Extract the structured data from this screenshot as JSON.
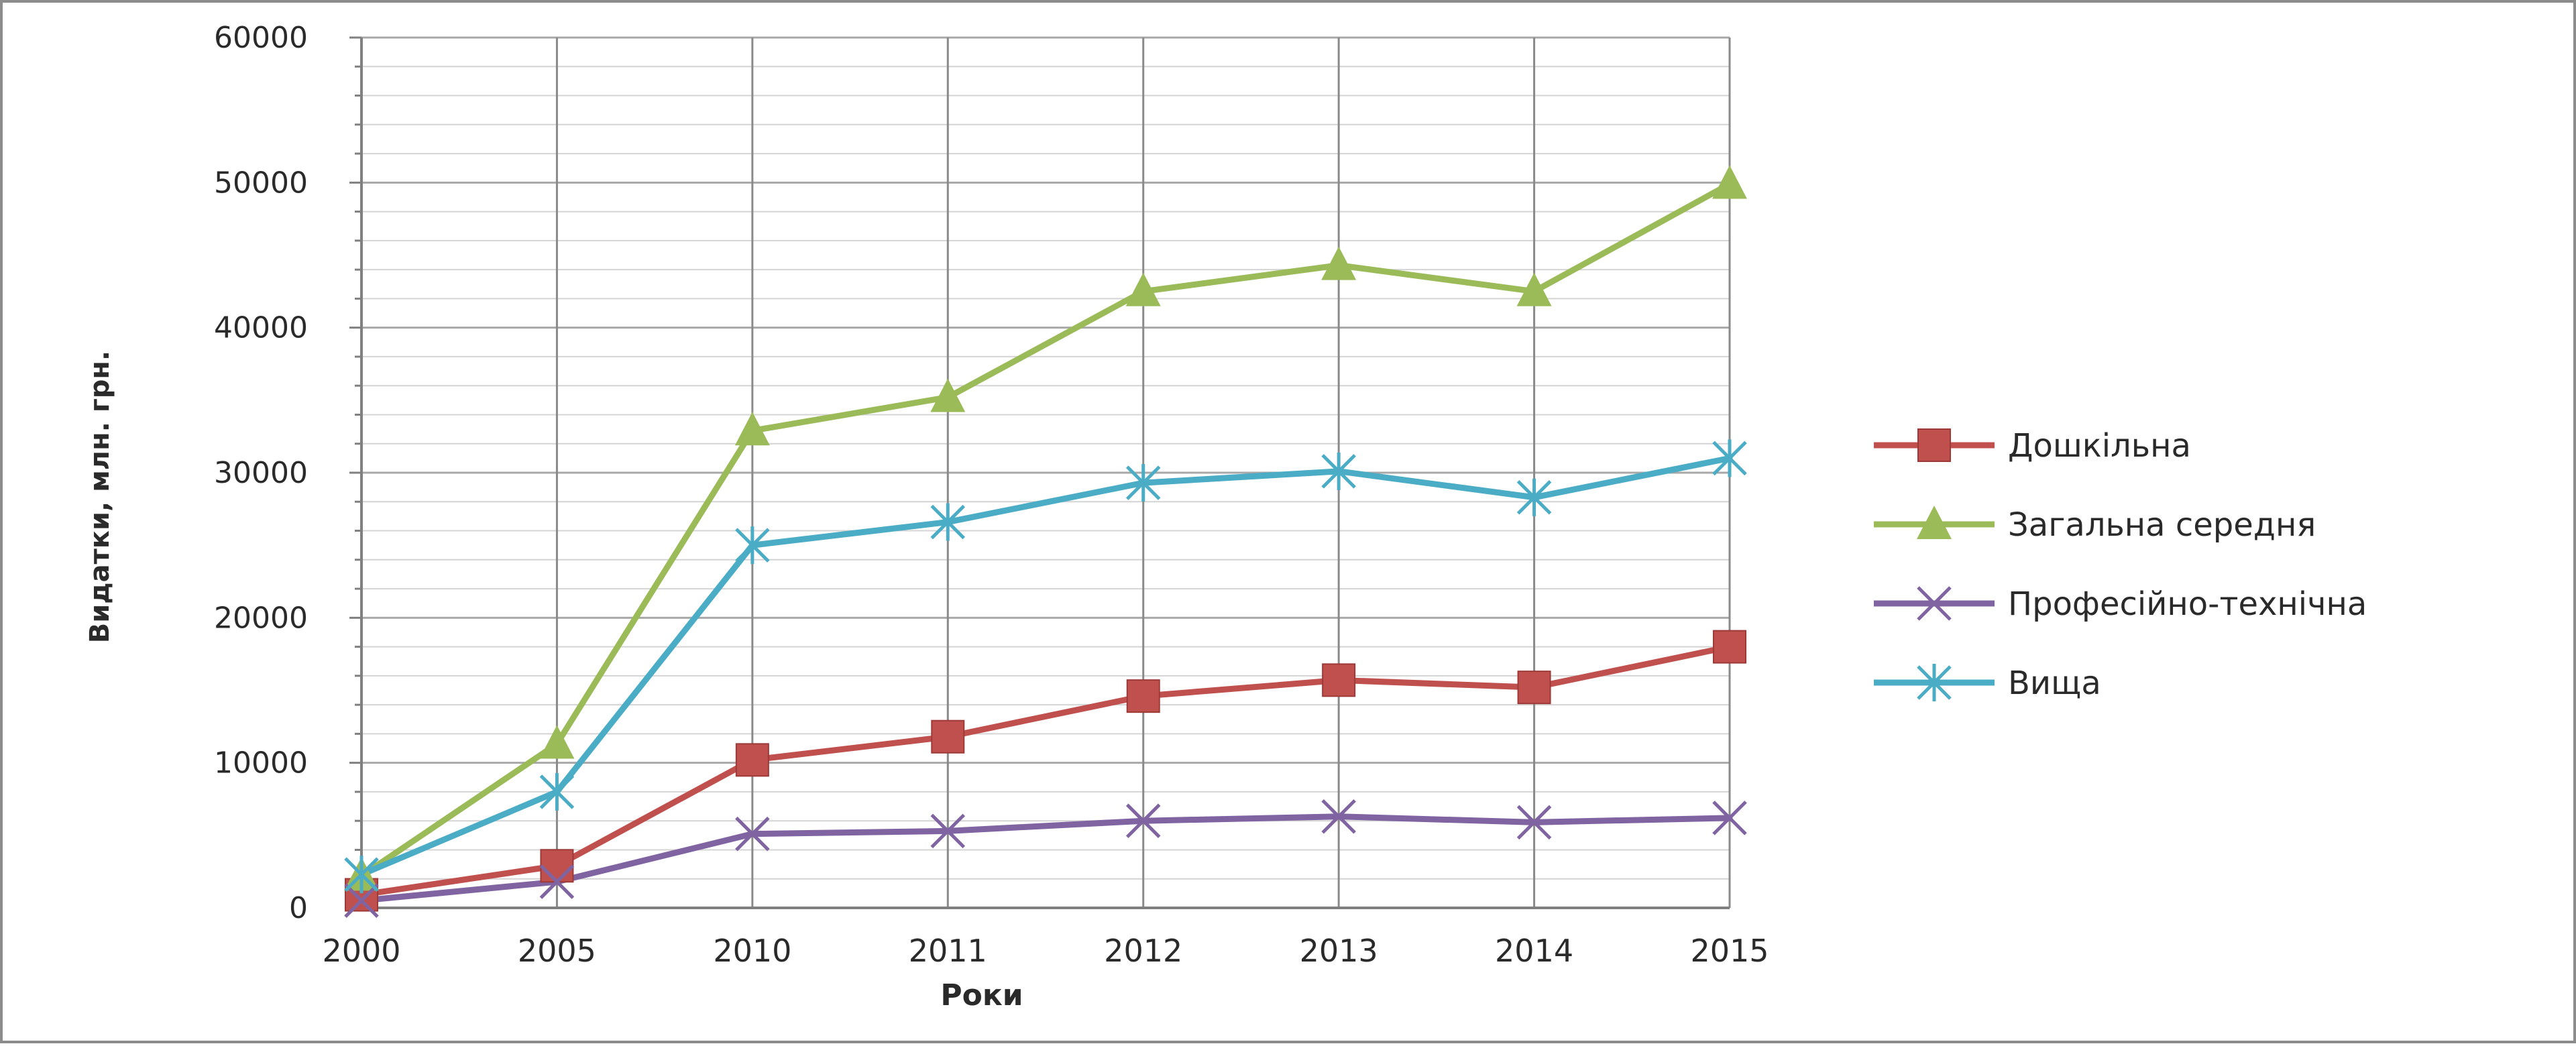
{
  "chart_data": {
    "type": "line",
    "title": "",
    "xlabel": "Роки",
    "ylabel": "Видатки, млн. грн.",
    "categories": [
      "2000",
      "2005",
      "2010",
      "2011",
      "2012",
      "2013",
      "2014",
      "2015"
    ],
    "ylim": [
      0,
      60000
    ],
    "yticks": [
      "0",
      "10000",
      "20000",
      "30000",
      "40000",
      "50000",
      "60000"
    ],
    "grid": "vertical and horizontal minor gridlines",
    "legend_position": "right",
    "series": [
      {
        "name": "Дошкільна",
        "color": "#c0504d",
        "marker": "square",
        "values": [
          900,
          2900,
          10200,
          11800,
          14600,
          15700,
          15200,
          18000
        ]
      },
      {
        "name": "Загальна середня",
        "color": "#9bbb59",
        "marker": "triangle",
        "values": [
          2200,
          11300,
          32900,
          35200,
          42500,
          44300,
          42500,
          49900
        ]
      },
      {
        "name": "Професійно-технічна",
        "color": "#8064a2",
        "marker": "x",
        "values": [
          500,
          1800,
          5100,
          5300,
          6000,
          6300,
          5900,
          6200
        ]
      },
      {
        "name": "Вища",
        "color": "#4bacc6",
        "marker": "star",
        "values": [
          2300,
          8000,
          25000,
          26600,
          29300,
          30100,
          28300,
          31000
        ]
      }
    ]
  }
}
